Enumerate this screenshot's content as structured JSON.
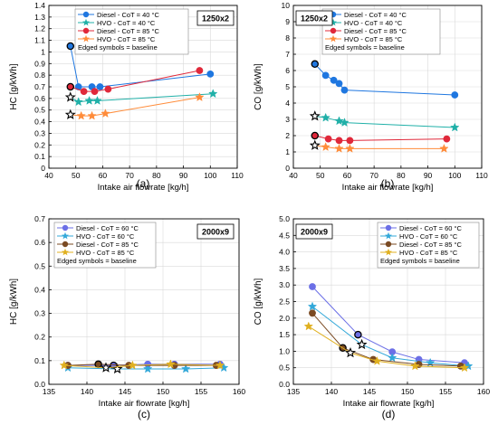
{
  "legend_note": "Edged symbols = baseline",
  "colors": {
    "blue": "#1f77e0",
    "teal": "#20b0a8",
    "red": "#e0283a",
    "orange": "#ff8c3a",
    "purple": "#6b6fe6",
    "cyan": "#33a8d9",
    "brown": "#7a4a22",
    "gold": "#e0b020"
  },
  "chart_data": [
    {
      "type": "line",
      "panel_label": "(a)",
      "tag": "1250x2",
      "xlabel": "Intake air flowrate [kg/h]",
      "ylabel": "HC [g/kWh]",
      "xlim": [
        40,
        110
      ],
      "ylim": [
        0,
        1.4
      ],
      "xticks": [
        "40",
        "50",
        "60",
        "70",
        "80",
        "90",
        "100",
        "110"
      ],
      "yticks": [
        "0",
        "0.1",
        "0.2",
        "0.3",
        "0.4",
        "0.5",
        "0.6",
        "0.7",
        "0.8",
        "0.9",
        "1",
        "1.1",
        "1.2",
        "1.3",
        "1.4"
      ],
      "grid": true,
      "legend_position": "top-center",
      "legend_note": "Edged symbols = baseline",
      "series": [
        {
          "name": "Diesel - CoT = 40 °C",
          "marker": "circle",
          "color": "blue",
          "x": [
            48,
            51,
            56,
            59,
            100
          ],
          "y": [
            1.05,
            0.7,
            0.7,
            0.7,
            0.81
          ],
          "baseline": 0
        },
        {
          "name": "HVO - CoT = 40 °C",
          "marker": "star",
          "color": "teal",
          "x": [
            48,
            51,
            55,
            58,
            101
          ],
          "y": [
            0.61,
            0.57,
            0.58,
            0.58,
            0.64
          ],
          "baseline": 0
        },
        {
          "name": "Diesel - CoT = 85 °C",
          "marker": "circle",
          "color": "red",
          "x": [
            48,
            53,
            57,
            62,
            96
          ],
          "y": [
            0.7,
            0.66,
            0.66,
            0.68,
            0.84
          ],
          "baseline": 0
        },
        {
          "name": "HVO - CoT = 85 °C",
          "marker": "star",
          "color": "orange",
          "x": [
            48,
            52,
            56,
            61,
            96
          ],
          "y": [
            0.46,
            0.45,
            0.45,
            0.47,
            0.61
          ],
          "baseline": 0
        }
      ]
    },
    {
      "type": "line",
      "panel_label": "(b)",
      "tag": "1250x2",
      "xlabel": "Intake air flowrate [kg/h]",
      "ylabel": "CO [g/kWh]",
      "xlim": [
        40,
        110
      ],
      "ylim": [
        0,
        10
      ],
      "xticks": [
        "40",
        "50",
        "60",
        "70",
        "80",
        "90",
        "100",
        "110"
      ],
      "yticks": [
        "0",
        "1",
        "2",
        "3",
        "4",
        "5",
        "6",
        "7",
        "8",
        "9",
        "10"
      ],
      "grid": true,
      "legend_position": "top-right",
      "legend_note": "Edged symbols = baseline",
      "series": [
        {
          "name": "Diesel - CoT = 40 °C",
          "marker": "circle",
          "color": "blue",
          "x": [
            48,
            52,
            55,
            57,
            59,
            100
          ],
          "y": [
            6.4,
            5.7,
            5.4,
            5.2,
            4.8,
            4.5
          ],
          "baseline": 0
        },
        {
          "name": "HVO - CoT = 40 °C",
          "marker": "star",
          "color": "teal",
          "x": [
            48,
            52,
            57,
            59,
            100
          ],
          "y": [
            3.2,
            3.1,
            2.9,
            2.8,
            2.5
          ],
          "baseline": 0
        },
        {
          "name": "Diesel - CoT = 85 °C",
          "marker": "circle",
          "color": "red",
          "x": [
            48,
            53,
            57,
            61,
            97
          ],
          "y": [
            2.0,
            1.8,
            1.7,
            1.7,
            1.8
          ],
          "baseline": 0
        },
        {
          "name": "HVO - CoT = 85 °C",
          "marker": "star",
          "color": "orange",
          "x": [
            48,
            52,
            57,
            61,
            96
          ],
          "y": [
            1.4,
            1.3,
            1.2,
            1.2,
            1.2
          ],
          "baseline": 0
        }
      ]
    },
    {
      "type": "line",
      "panel_label": "(c)",
      "tag": "2000x9",
      "xlabel": "Intake air flowrate [kg/h]",
      "ylabel": "HC [g/kWh]",
      "xlim": [
        135,
        160
      ],
      "ylim": [
        0,
        0.7
      ],
      "xticks": [
        "135",
        "140",
        "145",
        "150",
        "155",
        "160"
      ],
      "yticks": [
        "0.0",
        "0.1",
        "0.2",
        "0.3",
        "0.4",
        "0.5",
        "0.6",
        "0.7"
      ],
      "grid": true,
      "legend_position": "top-left",
      "legend_note": "Edged symbols = baseline",
      "series": [
        {
          "name": "Diesel - CoT = 60 °C",
          "marker": "circle",
          "color": "purple",
          "x": [
            137.5,
            143.5,
            148,
            151.5,
            157.5
          ],
          "y": [
            0.08,
            0.08,
            0.085,
            0.085,
            0.085
          ],
          "baseline": 1
        },
        {
          "name": "HVO - CoT = 60 °C",
          "marker": "star",
          "color": "cyan",
          "x": [
            137.5,
            144,
            148,
            153,
            158
          ],
          "y": [
            0.07,
            0.065,
            0.065,
            0.065,
            0.07
          ],
          "baseline": 1
        },
        {
          "name": "Diesel - CoT = 85 °C",
          "marker": "circle",
          "color": "brown",
          "x": [
            137.5,
            141.5,
            145.5,
            151.5,
            157
          ],
          "y": [
            0.08,
            0.085,
            0.08,
            0.08,
            0.08
          ],
          "baseline": 1
        },
        {
          "name": "HVO - CoT = 85 °C",
          "marker": "star",
          "color": "gold",
          "x": [
            137,
            142.5,
            146,
            151,
            157.5
          ],
          "y": [
            0.08,
            0.07,
            0.08,
            0.085,
            0.08
          ],
          "baseline": 1
        }
      ]
    },
    {
      "type": "line",
      "panel_label": "(d)",
      "tag": "2000x9",
      "xlabel": "Intake air flowrate [kg/h]",
      "ylabel": "CO [g/kWh]",
      "xlim": [
        135,
        160
      ],
      "ylim": [
        0,
        5.0
      ],
      "xticks": [
        "135",
        "140",
        "145",
        "150",
        "155",
        "160"
      ],
      "yticks": [
        "0.0",
        "0.5",
        "1.0",
        "1.5",
        "2.0",
        "2.5",
        "3.0",
        "3.5",
        "4.0",
        "4.5",
        "5.0"
      ],
      "grid": true,
      "legend_position": "top-right",
      "legend_note": "Edged symbols = baseline",
      "series": [
        {
          "name": "Diesel - CoT = 60 °C",
          "marker": "circle",
          "color": "purple",
          "x": [
            137.5,
            143.5,
            148,
            151.5,
            157.5
          ],
          "y": [
            2.95,
            1.5,
            0.98,
            0.75,
            0.65
          ],
          "baseline": 1
        },
        {
          "name": "HVO - CoT = 60 °C",
          "marker": "star",
          "color": "cyan",
          "x": [
            137.5,
            144,
            148,
            153,
            158
          ],
          "y": [
            2.35,
            1.2,
            0.8,
            0.65,
            0.55
          ],
          "baseline": 1
        },
        {
          "name": "Diesel - CoT = 85 °C",
          "marker": "circle",
          "color": "brown",
          "x": [
            137.5,
            141.5,
            145.5,
            151.5,
            157
          ],
          "y": [
            2.15,
            1.1,
            0.75,
            0.6,
            0.55
          ],
          "baseline": 1
        },
        {
          "name": "HVO - CoT = 85 °C",
          "marker": "star",
          "color": "gold",
          "x": [
            137,
            142.5,
            146,
            151,
            157.5
          ],
          "y": [
            1.75,
            0.95,
            0.7,
            0.55,
            0.5
          ],
          "baseline": 1
        }
      ]
    }
  ]
}
